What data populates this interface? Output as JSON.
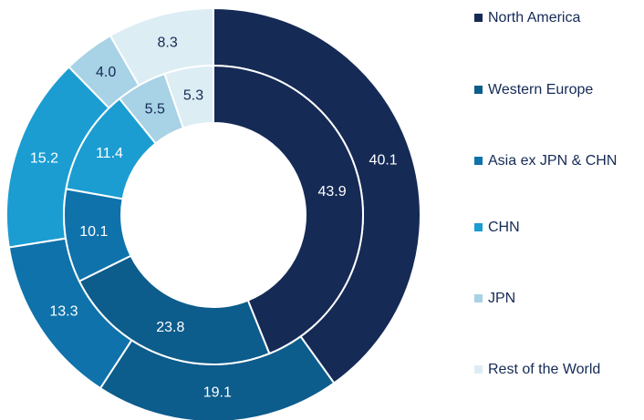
{
  "chart_data": {
    "type": "donut",
    "categories": [
      "North America",
      "Western Europe",
      "Asia ex JPN & CHN",
      "CHN",
      "JPN",
      "Rest of the World"
    ],
    "colors": [
      "#152a55",
      "#0c5c8c",
      "#0f72ab",
      "#1b9dd2",
      "#a8d2e5",
      "#dcedf4"
    ],
    "series": [
      {
        "values": [
          40.1,
          19.1,
          13.3,
          15.2,
          4.0,
          8.3
        ],
        "value_labels": [
          "40.1",
          "19.1",
          "13.3",
          "15.2",
          "4.0",
          "8.3"
        ]
      },
      {
        "values": [
          43.9,
          23.8,
          10.1,
          11.4,
          5.5,
          5.3
        ],
        "value_labels": [
          "43.9",
          "23.8",
          "10.1",
          "11.4",
          "5.5",
          "5.3"
        ]
      }
    ],
    "legend": "right"
  }
}
